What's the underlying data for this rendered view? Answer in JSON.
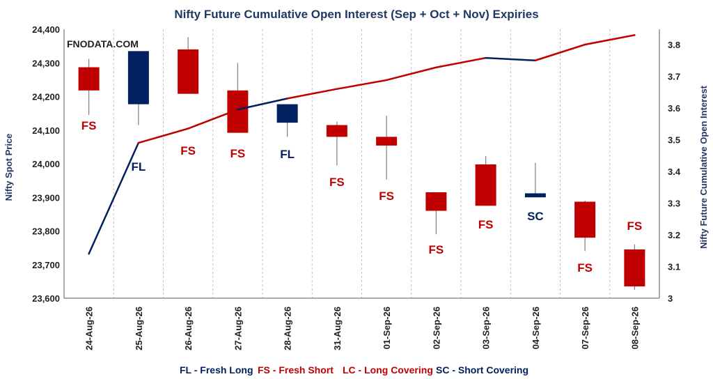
{
  "chart_data": {
    "type": "candlestick-with-line",
    "title": "Nifty Future Cumulative Open Interest (Sep + Oct + Nov) Expiries",
    "watermark": "FNODATA.COM",
    "ylabel_left": "Nifty Spot Price",
    "ylabel_right": "Nifty Future Cumulative Open Interest",
    "ylim_left": [
      23600,
      24400
    ],
    "yticks_left": [
      "23,600",
      "23,700",
      "23,800",
      "23,900",
      "24,000",
      "24,100",
      "24,200",
      "24,300",
      "24,400"
    ],
    "ylim_right": [
      3.0,
      3.85
    ],
    "yticks_right": [
      "3",
      "3.1",
      "3.2",
      "3.3",
      "3.4",
      "3.5",
      "3.6",
      "3.7",
      "3.8"
    ],
    "categories": [
      "24-Aug-26",
      "25-Aug-26",
      "26-Aug-26",
      "27-Aug-26",
      "28-Aug-26",
      "31-Aug-26",
      "01-Sep-26",
      "02-Sep-26",
      "03-Sep-26",
      "04-Sep-26",
      "07-Sep-26",
      "08-Sep-26"
    ],
    "candles": [
      {
        "open": 24218,
        "close": 24287,
        "high": 24312,
        "low": 24145
      },
      {
        "open": 24177,
        "close": 24335,
        "high": 24335,
        "low": 24115
      },
      {
        "open": 24208,
        "close": 24340,
        "high": 24377,
        "low": 24208
      },
      {
        "open": 24092,
        "close": 24218,
        "high": 24300,
        "low": 24092
      },
      {
        "open": 24122,
        "close": 24177,
        "high": 24177,
        "low": 24080
      },
      {
        "open": 24080,
        "close": 24115,
        "high": 24125,
        "low": 23995
      },
      {
        "open": 24054,
        "close": 24080,
        "high": 24143,
        "low": 23953
      },
      {
        "open": 23915,
        "close": 23860,
        "high": 23915,
        "low": 23790
      },
      {
        "open": 23875,
        "close": 23998,
        "high": 24023,
        "low": 23875
      },
      {
        "open": 23900,
        "close": 23912,
        "high": 24003,
        "low": 23900
      },
      {
        "open": 23780,
        "close": 23887,
        "high": 23890,
        "low": 23740
      },
      {
        "open": 23635,
        "close": 23745,
        "high": 23760,
        "low": 23625
      }
    ],
    "signals": [
      "FS",
      "FL",
      "FS",
      "FS",
      "FL",
      "FS",
      "FS",
      "FS",
      "FS",
      "SC",
      "FS",
      "FS"
    ],
    "open_interest": [
      3.14,
      3.49,
      3.535,
      3.595,
      3.63,
      3.66,
      3.688,
      3.728,
      3.758,
      3.75,
      3.8,
      3.83
    ],
    "legend": [
      {
        "code": "FL",
        "text": "FL - Fresh Long",
        "color": "#002060"
      },
      {
        "code": "FS",
        "text": "FS - Fresh Short",
        "color": "#c00000"
      },
      {
        "code": "LC",
        "text": "LC - Long Covering",
        "color": "#c00000"
      },
      {
        "code": "SC",
        "text": "SC - Short Covering",
        "color": "#002060"
      }
    ],
    "colors": {
      "FL": "#002060",
      "FS": "#c00000",
      "LC": "#c00000",
      "SC": "#002060",
      "wick": "#7f7f7f",
      "grid": "#bfbfbf"
    }
  }
}
